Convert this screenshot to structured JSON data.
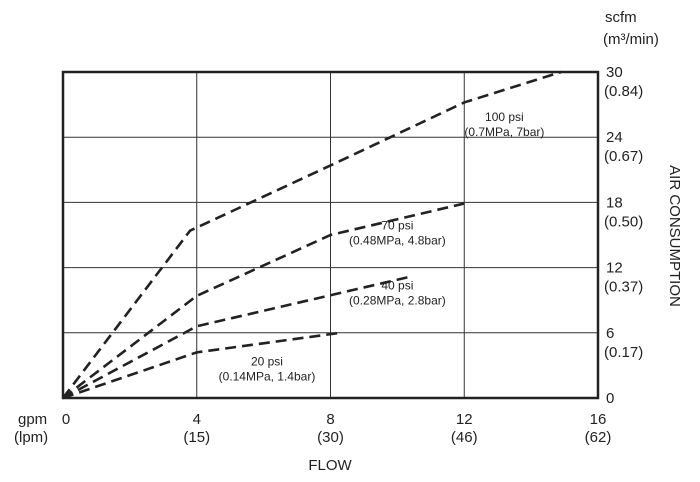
{
  "chart_data": {
    "type": "line",
    "xlabel": "FLOW",
    "ylabel": "AIR CONSUMPTION",
    "x_unit": "gpm",
    "x_unit_alt": "(lpm)",
    "y_unit": "scfm",
    "y_unit_alt": "(m³/min)",
    "xlim": [
      0,
      16
    ],
    "ylim": [
      0,
      30
    ],
    "grid": true,
    "x_ticks": [
      {
        "value": 0,
        "label": "0",
        "alt": ""
      },
      {
        "value": 4,
        "label": "4",
        "alt": "(15)"
      },
      {
        "value": 8,
        "label": "8",
        "alt": "(30)"
      },
      {
        "value": 12,
        "label": "12",
        "alt": "(46)"
      },
      {
        "value": 16,
        "label": "16",
        "alt": "(62)"
      }
    ],
    "y_ticks": [
      {
        "value": 0,
        "label": "0",
        "alt": ""
      },
      {
        "value": 6,
        "label": "6",
        "alt": "(0.17)"
      },
      {
        "value": 12,
        "label": "12",
        "alt": "(0.37)"
      },
      {
        "value": 18,
        "label": "18",
        "alt": "(0.50)"
      },
      {
        "value": 24,
        "label": "24",
        "alt": "(0.67)"
      },
      {
        "value": 30,
        "label": "30",
        "alt": "(0.84)"
      }
    ],
    "series": [
      {
        "name": "100 psi",
        "detail": "(0.7MPa, 7bar)",
        "x": [
          0,
          3.8,
          8,
          12,
          14.9
        ],
        "y": [
          0,
          15.4,
          21.4,
          27.2,
          30
        ]
      },
      {
        "name": "70 psi",
        "detail": "(0.48MPa, 4.8bar)",
        "x": [
          0,
          4,
          8,
          12
        ],
        "y": [
          0,
          9.4,
          15.0,
          17.9
        ]
      },
      {
        "name": "40 psi",
        "detail": "(0.28MPa, 2.8bar)",
        "x": [
          0,
          4,
          10.3
        ],
        "y": [
          0,
          6.6,
          11.1
        ]
      },
      {
        "name": "20 psi",
        "detail": "(0.14MPa, 1.4bar)",
        "x": [
          0,
          4,
          8.3
        ],
        "y": [
          0,
          4.2,
          6.0
        ]
      }
    ]
  }
}
